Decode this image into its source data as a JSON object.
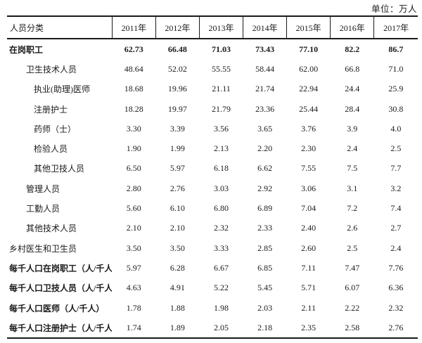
{
  "unit_label": "单位：万人",
  "table": {
    "header": {
      "category": "人员分类",
      "years": [
        "2011年",
        "2012年",
        "2013年",
        "2014年",
        "2015年",
        "2016年",
        "2017年"
      ]
    },
    "rows": [
      {
        "label": "在岗职工",
        "indent": 0,
        "bold_label": true,
        "bold_values": true,
        "values": [
          "62.73",
          "66.48",
          "71.03",
          "73.43",
          "77.10",
          "82.2",
          "86.7"
        ]
      },
      {
        "label": "卫生技术人员",
        "indent": 1,
        "bold_label": false,
        "bold_values": false,
        "values": [
          "48.64",
          "52.02",
          "55.55",
          "58.44",
          "62.00",
          "66.8",
          "71.0"
        ]
      },
      {
        "label": "执业(助理)医师",
        "indent": 2,
        "bold_label": false,
        "bold_values": false,
        "values": [
          "18.68",
          "19.96",
          "21.11",
          "21.74",
          "22.94",
          "24.4",
          "25.9"
        ]
      },
      {
        "label": "注册护士",
        "indent": 2,
        "bold_label": false,
        "bold_values": false,
        "values": [
          "18.28",
          "19.97",
          "21.79",
          "23.36",
          "25.44",
          "28.4",
          "30.8"
        ]
      },
      {
        "label": "药师（士）",
        "indent": 2,
        "bold_label": false,
        "bold_values": false,
        "values": [
          "3.30",
          "3.39",
          "3.56",
          "3.65",
          "3.76",
          "3.9",
          "4.0"
        ]
      },
      {
        "label": "检验人员",
        "indent": 2,
        "bold_label": false,
        "bold_values": false,
        "values": [
          "1.90",
          "1.99",
          "2.13",
          "2.20",
          "2.30",
          "2.4",
          "2.5"
        ]
      },
      {
        "label": "其他卫技人员",
        "indent": 2,
        "bold_label": false,
        "bold_values": false,
        "values": [
          "6.50",
          "5.97",
          "6.18",
          "6.62",
          "7.55",
          "7.5",
          "7.7"
        ]
      },
      {
        "label": "管理人员",
        "indent": 1,
        "bold_label": false,
        "bold_values": false,
        "values": [
          "2.80",
          "2.76",
          "3.03",
          "2.92",
          "3.06",
          "3.1",
          "3.2"
        ]
      },
      {
        "label": "工勤人员",
        "indent": 1,
        "bold_label": false,
        "bold_values": false,
        "values": [
          "5.60",
          "6.10",
          "6.80",
          "6.89",
          "7.04",
          "7.2",
          "7.4"
        ]
      },
      {
        "label": "其他技术人员",
        "indent": 1,
        "bold_label": false,
        "bold_values": false,
        "values": [
          "2.10",
          "2.10",
          "2.32",
          "2.33",
          "2.40",
          "2.6",
          "2.7"
        ]
      },
      {
        "label": "乡村医生和卫生员",
        "indent": 0,
        "bold_label": false,
        "bold_values": false,
        "values": [
          "3.50",
          "3.50",
          "3.33",
          "2.85",
          "2.60",
          "2.5",
          "2.4"
        ]
      },
      {
        "label": "每千人口在岗职工（人/千人）",
        "indent": 0,
        "bold_label": true,
        "bold_values": false,
        "values": [
          "5.97",
          "6.28",
          "6.67",
          "6.85",
          "7.11",
          "7.47",
          "7.76"
        ]
      },
      {
        "label": "每千人口卫技人员（人/千人）",
        "indent": 0,
        "bold_label": true,
        "bold_values": false,
        "values": [
          "4.63",
          "4.91",
          "5.22",
          "5.45",
          "5.71",
          "6.07",
          "6.36"
        ]
      },
      {
        "label": "每千人口医师（人/千人）",
        "indent": 0,
        "bold_label": true,
        "bold_values": false,
        "values": [
          "1.78",
          "1.88",
          "1.98",
          "2.03",
          "2.11",
          "2.22",
          "2.32"
        ]
      },
      {
        "label": "每千人口注册护士（人/千人）",
        "indent": 0,
        "bold_label": true,
        "bold_values": false,
        "values": [
          "1.74",
          "1.89",
          "2.05",
          "2.18",
          "2.35",
          "2.58",
          "2.76"
        ]
      }
    ]
  }
}
